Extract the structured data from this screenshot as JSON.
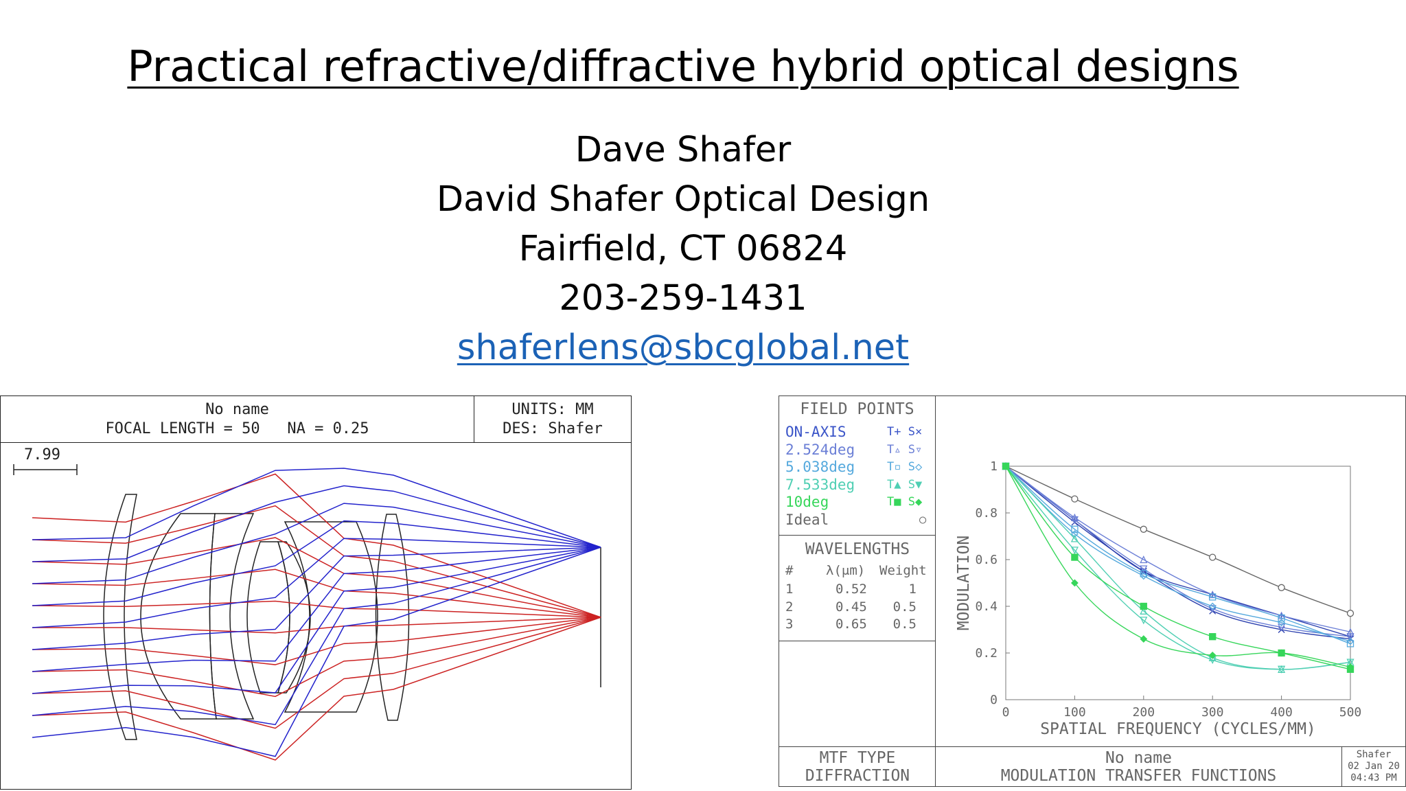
{
  "slide": {
    "title": "Practical refractive/diffractive hybrid optical designs",
    "author": "Dave Shafer",
    "company": "David Shafer Optical Design",
    "location": "Fairfield, CT 06824",
    "phone": "203-259-1431",
    "email": "shaferlens@sbcglobal.net"
  },
  "lens_drawing": {
    "name": "No name",
    "specs": "FOCAL LENGTH = 50   NA = 0.25",
    "units": "UNITS: MM",
    "designer": "DES: Shafer",
    "scale": "7.99",
    "ray_colors": {
      "off_axis": "#cc2222",
      "on_axis": "#2222cc"
    }
  },
  "mtf_panel": {
    "field_points_title": "FIELD POINTS",
    "fields": [
      {
        "label": "ON-AXIS",
        "symbols": "T+ S×",
        "color": "#3b55c8"
      },
      {
        "label": "2.524deg",
        "symbols": "T▵ S▿",
        "color": "#6b7fd6"
      },
      {
        "label": "5.038deg",
        "symbols": "T▫ S◇",
        "color": "#55a9dd"
      },
      {
        "label": "7.533deg",
        "symbols": "T▲ S▼",
        "color": "#4fcfb3"
      },
      {
        "label": "10deg",
        "symbols": "T■ S◆",
        "color": "#36d65a"
      },
      {
        "label": "Ideal",
        "symbols": "○",
        "color": "#666666"
      }
    ],
    "wavelengths_title": "WAVELENGTHS",
    "wl_header": {
      "num": "#",
      "lambda": "λ(μm)",
      "weight": "Weight"
    },
    "wavelengths": [
      {
        "num": "1",
        "lambda": "0.52",
        "weight": "1"
      },
      {
        "num": "2",
        "lambda": "0.45",
        "weight": "0.5"
      },
      {
        "num": "3",
        "lambda": "0.65",
        "weight": "0.5"
      }
    ],
    "mtf_type_line1": "MTF TYPE",
    "mtf_type_line2": "DIFFRACTION",
    "footer_name": "No name",
    "footer_title": "MODULATION TRANSFER FUNCTIONS",
    "stamp": {
      "name": "Shafer",
      "date": "02 Jan 20",
      "time": "04:43 PM"
    }
  },
  "chart_data": {
    "type": "line",
    "xlabel": "SPATIAL FREQUENCY (CYCLES/MM)",
    "ylabel": "MODULATION",
    "xlim": [
      0,
      500
    ],
    "ylim": [
      0,
      1
    ],
    "xticks": [
      0,
      100,
      200,
      300,
      400,
      500
    ],
    "yticks": [
      0,
      0.2,
      0.4,
      0.6,
      0.8,
      1
    ],
    "x": [
      0,
      100,
      200,
      300,
      400,
      500
    ],
    "series": [
      {
        "name": "Ideal",
        "color": "#666666",
        "marker": "circle",
        "values": [
          1,
          0.86,
          0.73,
          0.61,
          0.48,
          0.37
        ]
      },
      {
        "name": "ON-AXIS T",
        "color": "#2b3fae",
        "marker": "plus",
        "values": [
          1,
          0.77,
          0.55,
          0.45,
          0.36,
          0.27
        ]
      },
      {
        "name": "ON-AXIS S",
        "color": "#2b3fae",
        "marker": "x",
        "values": [
          1,
          0.76,
          0.55,
          0.38,
          0.3,
          0.26
        ]
      },
      {
        "name": "2.524deg T",
        "color": "#6b7fd6",
        "marker": "triangle",
        "values": [
          1,
          0.78,
          0.6,
          0.45,
          0.36,
          0.29
        ]
      },
      {
        "name": "2.524deg S",
        "color": "#6b7fd6",
        "marker": "triangle-down",
        "values": [
          1,
          0.77,
          0.56,
          0.39,
          0.31,
          0.27
        ]
      },
      {
        "name": "5.038deg T",
        "color": "#55a9dd",
        "marker": "square",
        "values": [
          1,
          0.73,
          0.54,
          0.44,
          0.35,
          0.24
        ]
      },
      {
        "name": "5.038deg S",
        "color": "#55a9dd",
        "marker": "diamond",
        "values": [
          1,
          0.71,
          0.53,
          0.4,
          0.33,
          0.25
        ]
      },
      {
        "name": "7.533deg T",
        "color": "#4fcfb3",
        "marker": "triangle",
        "values": [
          1,
          0.69,
          0.38,
          0.18,
          0.13,
          0.16
        ]
      },
      {
        "name": "7.533deg S",
        "color": "#4fcfb3",
        "marker": "triangle-down",
        "values": [
          1,
          0.64,
          0.34,
          0.17,
          0.13,
          0.16
        ]
      },
      {
        "name": "10deg T",
        "color": "#36d65a",
        "marker": "square-filled",
        "values": [
          1,
          0.61,
          0.4,
          0.27,
          0.2,
          0.13
        ]
      },
      {
        "name": "10deg S",
        "color": "#36d65a",
        "marker": "diamond-filled",
        "values": [
          1,
          0.5,
          0.26,
          0.19,
          0.2,
          0.14
        ]
      }
    ]
  }
}
